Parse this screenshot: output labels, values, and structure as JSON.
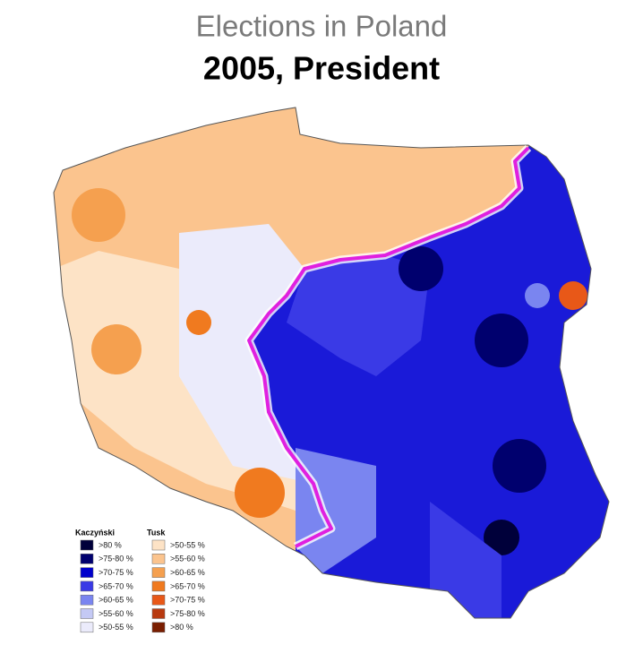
{
  "header": {
    "title": "Elections in Poland",
    "subtitle": "2005, President"
  },
  "legend": {
    "groups": [
      {
        "name": "Kaczyński",
        "items": [
          {
            "label": ">80 %",
            "color": "#00003a"
          },
          {
            "label": ">75-80 %",
            "color": "#00006e"
          },
          {
            "label": ">70-75 %",
            "color": "#0000cc"
          },
          {
            "label": ">65-70 %",
            "color": "#3a3ae6"
          },
          {
            "label": ">60-65 %",
            "color": "#7a85f0"
          },
          {
            "label": ">55-60 %",
            "color": "#c4c9f5"
          },
          {
            "label": ">50-55 %",
            "color": "#ebebfb"
          }
        ]
      },
      {
        "name": "Tusk",
        "items": [
          {
            "label": ">50-55 %",
            "color": "#fde3c6"
          },
          {
            "label": ">55-60 %",
            "color": "#fbc48e"
          },
          {
            "label": ">60-65 %",
            "color": "#f5a04f"
          },
          {
            "label": ">65-70 %",
            "color": "#f07a1f"
          },
          {
            "label": ">70-75 %",
            "color": "#e85818"
          },
          {
            "label": ">75-80 %",
            "color": "#b83a10"
          },
          {
            "label": ">80 %",
            "color": "#7a1e00"
          }
        ]
      }
    ]
  }
}
